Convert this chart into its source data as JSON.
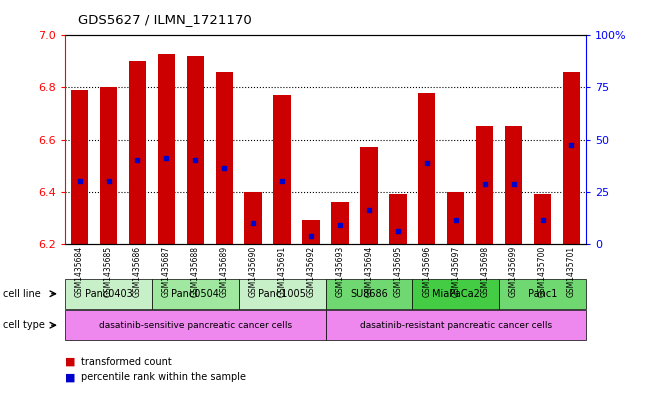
{
  "title": "GDS5627 / ILMN_1721170",
  "samples": [
    "GSM1435684",
    "GSM1435685",
    "GSM1435686",
    "GSM1435687",
    "GSM1435688",
    "GSM1435689",
    "GSM1435690",
    "GSM1435691",
    "GSM1435692",
    "GSM1435693",
    "GSM1435694",
    "GSM1435695",
    "GSM1435696",
    "GSM1435697",
    "GSM1435698",
    "GSM1435699",
    "GSM1435700",
    "GSM1435701"
  ],
  "bar_heights": [
    6.79,
    6.8,
    6.9,
    6.93,
    6.92,
    6.86,
    6.4,
    6.77,
    6.29,
    6.36,
    6.57,
    6.39,
    6.78,
    6.4,
    6.65,
    6.65,
    6.39,
    6.86
  ],
  "blue_positions": [
    6.44,
    6.44,
    6.52,
    6.53,
    6.52,
    6.49,
    6.28,
    6.44,
    6.23,
    6.27,
    6.33,
    6.25,
    6.51,
    6.29,
    6.43,
    6.43,
    6.29,
    6.58
  ],
  "ymin": 6.2,
  "ymax": 7.0,
  "yticks_left": [
    6.2,
    6.4,
    6.6,
    6.8,
    7.0
  ],
  "yticks_right": [
    0,
    25,
    50,
    75,
    100
  ],
  "cell_lines": [
    {
      "name": "Panc0403",
      "start": 0,
      "end": 2,
      "color": "#c8f0c8"
    },
    {
      "name": "Panc0504",
      "start": 3,
      "end": 5,
      "color": "#a0e8a0"
    },
    {
      "name": "Panc1005",
      "start": 6,
      "end": 8,
      "color": "#c8f0c8"
    },
    {
      "name": "SU8686",
      "start": 9,
      "end": 11,
      "color": "#70d870"
    },
    {
      "name": "MiaPaCa2",
      "start": 12,
      "end": 14,
      "color": "#44cc44"
    },
    {
      "name": "Panc1",
      "start": 15,
      "end": 17,
      "color": "#70d870"
    }
  ],
  "cell_types": [
    {
      "name": "dasatinib-sensitive pancreatic cancer cells",
      "start": 0,
      "end": 8,
      "color": "#ee88ee"
    },
    {
      "name": "dasatinib-resistant pancreatic cancer cells",
      "start": 9,
      "end": 17,
      "color": "#ee88ee"
    }
  ],
  "bar_color": "#cc0000",
  "blue_color": "#0000cc",
  "bar_width": 0.6,
  "grid_lines": [
    6.4,
    6.6,
    6.8
  ],
  "label_arrow_cell_line": "cell line",
  "label_arrow_cell_type": "cell type",
  "legend_items": [
    {
      "color": "#cc0000",
      "label": "transformed count"
    },
    {
      "color": "#0000cc",
      "label": "percentile rank within the sample"
    }
  ]
}
